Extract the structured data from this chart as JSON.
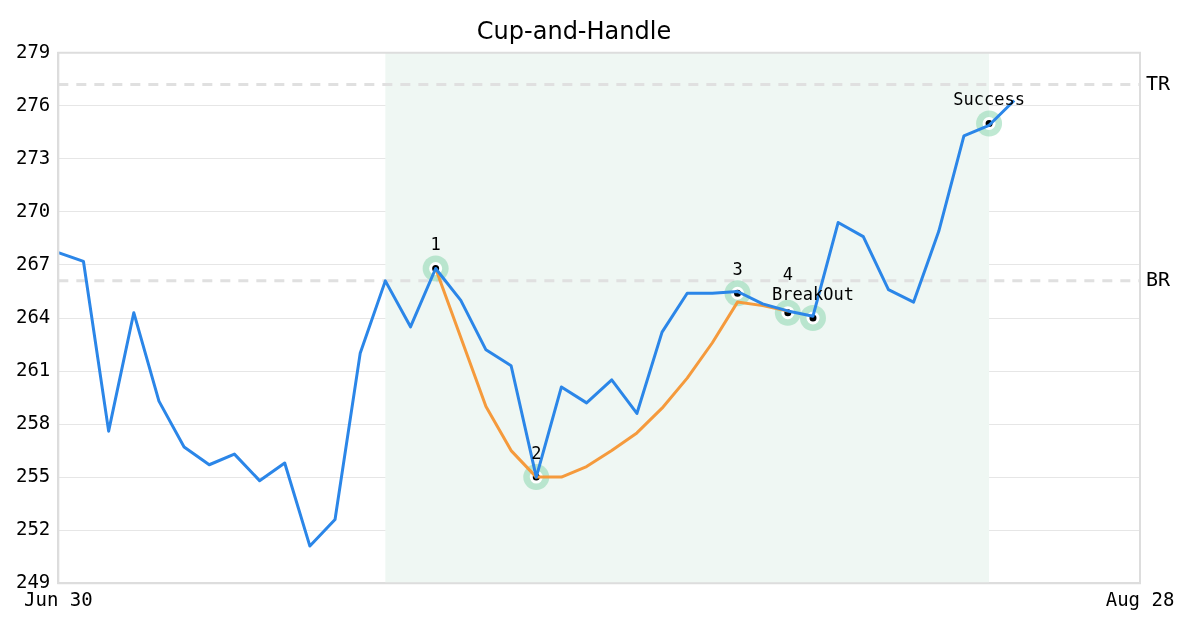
{
  "chart_data": {
    "type": "line",
    "title": "Cup-and-Handle",
    "categories": [
      "Jun 30",
      null,
      null,
      null,
      null,
      null,
      null,
      null,
      null,
      null,
      null,
      null,
      null,
      null,
      null,
      null,
      null,
      null,
      null,
      null,
      null,
      null,
      null,
      null,
      null,
      null,
      null,
      null,
      null,
      null,
      null,
      null,
      null,
      null,
      null,
      null,
      null,
      null,
      null,
      null,
      null,
      null,
      null,
      "Aug 28"
    ],
    "series": [
      {
        "color": "#2b86e8",
        "values": [
          267.7,
          267.2,
          257.6,
          264.3,
          259.3,
          256.7,
          255.7,
          256.3,
          254.8,
          255.8,
          251.1,
          252.6,
          262.0,
          266.1,
          263.5,
          266.8,
          265.0,
          262.2,
          261.3,
          255.0,
          260.1,
          259.2,
          260.5,
          258.6,
          263.2,
          265.4,
          265.4,
          265.5,
          264.8,
          264.4,
          264.1,
          269.4,
          268.6,
          265.6,
          264.9,
          268.9,
          274.3,
          274.9,
          276.3,
          null,
          null,
          null,
          null,
          null
        ]
      },
      {
        "color": "#f59a3c",
        "values": [
          null,
          null,
          null,
          null,
          null,
          null,
          null,
          null,
          null,
          null,
          null,
          null,
          null,
          null,
          null,
          266.8,
          262.9,
          259.0,
          256.5,
          255.0,
          255.0,
          255.6,
          256.5,
          257.5,
          258.9,
          260.6,
          262.6,
          264.9,
          264.7,
          264.4,
          null,
          null,
          null,
          null,
          null,
          null,
          null,
          null,
          null,
          null,
          null,
          null,
          null,
          null
        ]
      },
      {
        "type": "scatter",
        "color": "#000000",
        "values": [
          null,
          null,
          null,
          null,
          null,
          null,
          null,
          null,
          null,
          null,
          null,
          null,
          null,
          null,
          null,
          266.8,
          null,
          null,
          null,
          255.0,
          null,
          null,
          null,
          null,
          null,
          null,
          null,
          265.4,
          null,
          264.3,
          264.0,
          null,
          null,
          null,
          null,
          null,
          null,
          275.0,
          null,
          null,
          null,
          null,
          null,
          null
        ]
      }
    ],
    "ylim": [
      249,
      279
    ],
    "yticks": [
      249,
      252,
      255,
      258,
      261,
      264,
      267,
      270,
      273,
      276,
      279
    ],
    "ref_lines": [
      {
        "axis": "y",
        "value": 277.2,
        "label": "TR",
        "color": "#e0e0e0",
        "line_style": "dashed"
      },
      {
        "axis": "y",
        "value": 266.1,
        "label": "BR",
        "color": "#e0e0e0",
        "line_style": "dashed"
      }
    ],
    "annotations": [
      {
        "text": "1",
        "y": 266.8
      },
      {
        "text": "2",
        "y": 255.0
      },
      {
        "text": "3",
        "y": 265.4
      },
      {
        "text": "4",
        "y": 264.3
      },
      {
        "text": "BreakOut",
        "y": 264.0
      },
      {
        "text": "Success",
        "y": 275.0
      }
    ],
    "grid": "y",
    "legend": false
  }
}
